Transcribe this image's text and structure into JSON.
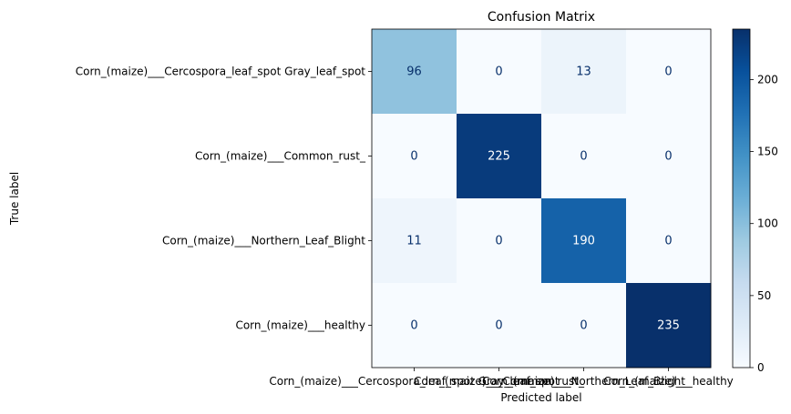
{
  "chart_data": {
    "type": "heatmap",
    "title": "Confusion Matrix",
    "xlabel": "Predicted label",
    "ylabel": "True label",
    "row_labels": [
      "Corn_(maize)___Cercospora_leaf_spot Gray_leaf_spot",
      "Corn_(maize)___Common_rust_",
      "Corn_(maize)___Northern_Leaf_Blight",
      "Corn_(maize)___healthy"
    ],
    "col_labels": [
      "Corn_(maize)___Cercospora_leaf_spot Gray_leaf_spot",
      "Corn_(maize)___Common_rust_",
      "Corn_(maize)___Northern_Leaf_Blight",
      "Corn_(maize)___healthy"
    ],
    "values": [
      [
        96,
        0,
        13,
        0
      ],
      [
        0,
        225,
        0,
        0
      ],
      [
        11,
        0,
        190,
        0
      ],
      [
        0,
        0,
        0,
        235
      ]
    ],
    "colormap": "Blues",
    "colorbar": {
      "range": [
        0,
        235
      ],
      "ticks": [
        0,
        50,
        100,
        150,
        200
      ]
    }
  }
}
